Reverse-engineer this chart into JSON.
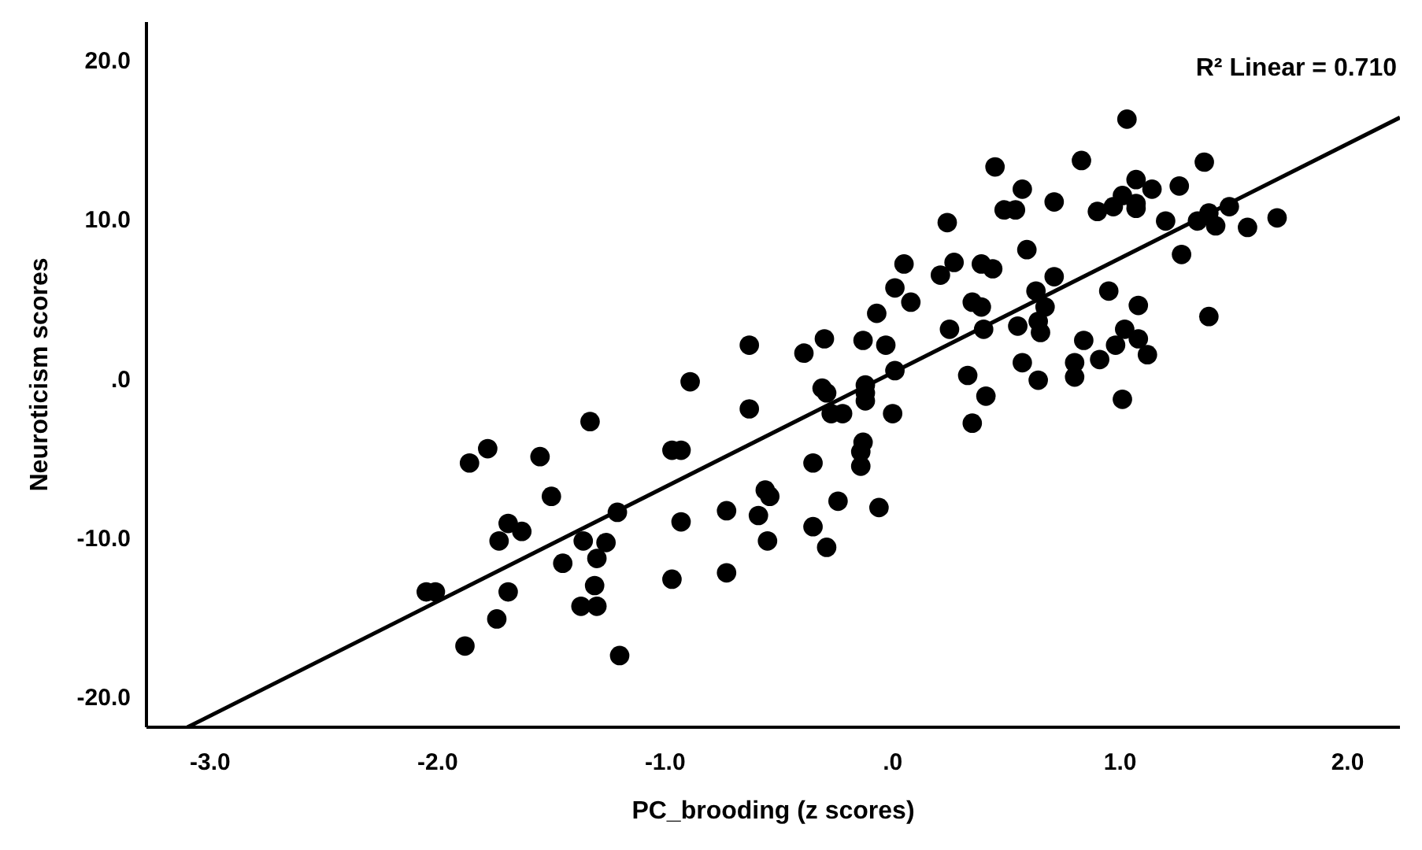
{
  "chart_data": {
    "type": "scatter",
    "xlabel": "PC_brooding (z scores)",
    "ylabel": "Neuroticism scores",
    "xlim": [
      -3.28,
      2.23
    ],
    "ylim": [
      -21.9,
      22.4
    ],
    "xticks": [
      {
        "value": -3,
        "label": "-3.0"
      },
      {
        "value": -2,
        "label": "-2.0"
      },
      {
        "value": -1,
        "label": "-1.0"
      },
      {
        "value": 0,
        "label": ".0"
      },
      {
        "value": 1,
        "label": "1.0"
      },
      {
        "value": 2,
        "label": "2.0"
      }
    ],
    "yticks": [
      {
        "value": -20,
        "label": "-20.0"
      },
      {
        "value": -10,
        "label": "-10.0"
      },
      {
        "value": 0,
        "label": ".0"
      },
      {
        "value": 10,
        "label": "10.0"
      },
      {
        "value": 20,
        "label": "20.0"
      }
    ],
    "grid": false,
    "annotations": [
      "R² Linear = 0.710"
    ],
    "series": [
      {
        "color": "#000000",
        "marker": "circle",
        "x": [
          -0.89,
          -0.63,
          -1.33,
          -1.78,
          -1.86,
          -1.55,
          -0.97,
          -0.93,
          -1.5,
          -1.21,
          -1.69,
          -1.63,
          -1.73,
          -1.36,
          -1.26,
          -1.3,
          -1.45,
          -1.31,
          -1.37,
          -1.3,
          -1.69,
          -2.05,
          -2.01,
          -1.74,
          -1.88,
          -1.2,
          -0.93,
          -0.73,
          -0.59,
          -0.56,
          -0.54,
          -0.55,
          -0.97,
          -0.73,
          -0.35,
          -0.24,
          -0.35,
          -0.29,
          -0.06,
          -0.13,
          -0.14,
          -0.14,
          0.0,
          1.03,
          1.37,
          0.83,
          0.45,
          1.07,
          1.14,
          1.26,
          0.57,
          0.71,
          0.49,
          0.54,
          0.9,
          0.97,
          1.01,
          1.07,
          1.07,
          1.2,
          1.34,
          1.39,
          1.42,
          1.48,
          1.56,
          1.69,
          1.27,
          0.24,
          0.59,
          0.05,
          0.27,
          0.21,
          0.39,
          0.44,
          0.71,
          0.01,
          0.08,
          -0.07,
          0.35,
          0.39,
          0.63,
          0.67,
          0.95,
          1.08,
          1.39,
          -0.63,
          -0.39,
          -0.3,
          -0.13,
          -0.03,
          0.25,
          0.4,
          0.55,
          0.64,
          0.65,
          0.84,
          0.98,
          1.02,
          1.08,
          1.12,
          -0.31,
          -0.29,
          -0.12,
          0.01,
          -0.12,
          -0.12,
          -0.27,
          -0.22,
          0.33,
          0.41,
          0.57,
          0.64,
          0.35,
          0.8,
          0.8,
          0.91,
          1.01
        ],
        "values": [
          -0.2,
          -1.9,
          -2.7,
          -4.4,
          -5.3,
          -4.9,
          -4.5,
          -4.5,
          -7.4,
          -8.4,
          -9.1,
          -9.6,
          -10.2,
          -10.2,
          -10.3,
          -11.3,
          -11.6,
          -13.0,
          -14.3,
          -14.3,
          -13.4,
          -13.4,
          -13.4,
          -15.1,
          -16.8,
          -17.4,
          -9.0,
          -8.3,
          -8.6,
          -7.0,
          -7.4,
          -10.2,
          -12.6,
          -12.2,
          -5.3,
          -7.7,
          -9.3,
          -10.6,
          -8.1,
          -4.0,
          -4.6,
          -5.5,
          -2.2,
          16.3,
          13.6,
          13.7,
          13.3,
          12.5,
          11.9,
          12.1,
          11.9,
          11.1,
          10.6,
          10.6,
          10.5,
          10.8,
          11.5,
          11.0,
          10.7,
          9.9,
          9.9,
          10.4,
          9.6,
          10.8,
          9.5,
          10.1,
          7.8,
          9.8,
          8.1,
          7.2,
          7.3,
          6.5,
          7.2,
          6.9,
          6.4,
          5.7,
          4.8,
          4.1,
          4.8,
          4.5,
          5.5,
          4.5,
          5.5,
          4.6,
          3.9,
          2.1,
          1.6,
          2.5,
          2.4,
          2.1,
          3.1,
          3.1,
          3.3,
          3.6,
          2.9,
          2.4,
          2.1,
          3.1,
          2.5,
          1.5,
          -0.6,
          -0.9,
          -0.9,
          0.5,
          -1.4,
          -0.4,
          -2.2,
          -2.2,
          0.2,
          -1.1,
          1.0,
          -0.1,
          -2.8,
          1.0,
          0.1,
          1.2,
          -1.3
        ]
      },
      {
        "type": "line",
        "color": "#000000",
        "x": [
          -3.1,
          2.23
        ],
        "values": [
          -21.9,
          16.4
        ]
      }
    ]
  }
}
